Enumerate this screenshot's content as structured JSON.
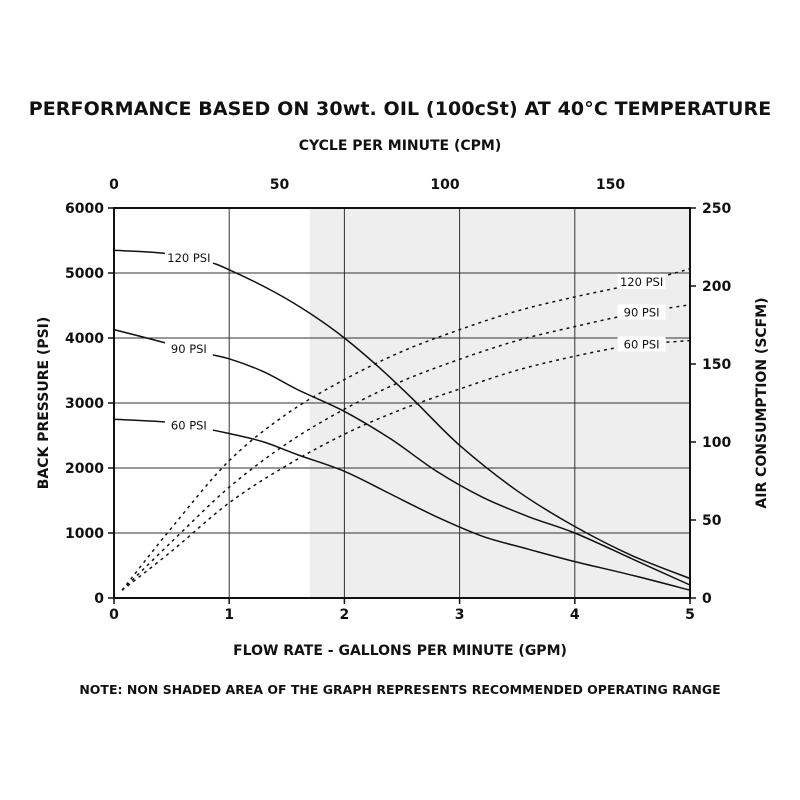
{
  "chart_data": {
    "type": "line",
    "title": "PERFORMANCE BASED ON 30wt. OIL (100cSt) AT 40°C TEMPERATURE",
    "top_axis_title": "CYCLE PER MINUTE (CPM)",
    "xlabel": "FLOW RATE - GALLONS PER MINUTE (GPM)",
    "ylabel_left": "BACK PRESSURE  (PSI)",
    "ylabel_right": "AIR CONSUMPTION  (SCFM)",
    "note": "NOTE:  NON SHADED AREA OF THE GRAPH REPRESENTS RECOMMENDED OPERATING RANGE",
    "xlim": [
      0,
      5
    ],
    "x_ticks": [
      "0",
      "1",
      "2",
      "3",
      "4",
      "5"
    ],
    "ylim_left": [
      0,
      6000
    ],
    "y_left_ticks": [
      "0",
      "1000",
      "2000",
      "3000",
      "4000",
      "5000",
      "6000"
    ],
    "ylim_right": [
      0,
      250
    ],
    "y_right_ticks": [
      "0",
      "50",
      "100",
      "150",
      "200",
      "250"
    ],
    "cpm_lim": [
      0,
      174
    ],
    "cpm_ticks": [
      "0",
      "50",
      "100",
      "150"
    ],
    "shaded_region_gpm": [
      1.7,
      5
    ],
    "grid": true,
    "series": [
      {
        "name": "120 PSI",
        "axis": "left",
        "style": "solid",
        "x": [
          0,
          0.45,
          0.8,
          1.0,
          1.4,
          1.7,
          2.0,
          2.3,
          2.6,
          3.0,
          3.5,
          4.0,
          4.5,
          5.0
        ],
        "y": [
          5350,
          5300,
          5180,
          5050,
          4700,
          4380,
          4000,
          3550,
          3050,
          2350,
          1650,
          1100,
          650,
          300
        ]
      },
      {
        "name": "90 PSI",
        "axis": "left",
        "style": "solid",
        "x": [
          0,
          0.5,
          0.75,
          1.0,
          1.3,
          1.6,
          2.0,
          2.4,
          2.8,
          3.2,
          3.6,
          4.0,
          4.5,
          5.0
        ],
        "y": [
          4130,
          3900,
          3780,
          3680,
          3480,
          3200,
          2870,
          2450,
          1950,
          1550,
          1250,
          1000,
          600,
          200
        ]
      },
      {
        "name": "60 PSI",
        "axis": "left",
        "style": "solid",
        "x": [
          0,
          0.5,
          0.75,
          1.0,
          1.3,
          1.6,
          2.0,
          2.4,
          2.8,
          3.2,
          3.6,
          4.0,
          4.5,
          5.0
        ],
        "y": [
          2750,
          2700,
          2620,
          2530,
          2400,
          2200,
          1950,
          1600,
          1250,
          950,
          750,
          560,
          350,
          120
        ]
      },
      {
        "name": "120 PSI",
        "axis": "right",
        "style": "dashed",
        "x": [
          0.07,
          0.5,
          1.0,
          1.5,
          2.0,
          2.5,
          3.0,
          3.5,
          4.0,
          4.5,
          5.0
        ],
        "y": [
          5,
          45,
          88,
          118,
          140,
          158,
          172,
          184,
          193,
          201,
          211
        ]
      },
      {
        "name": "90 PSI",
        "axis": "right",
        "style": "dashed",
        "x": [
          0.07,
          0.5,
          1.0,
          1.5,
          2.0,
          2.5,
          3.0,
          3.5,
          4.0,
          4.5,
          5.0
        ],
        "y": [
          5,
          36,
          71,
          99,
          121,
          139,
          153,
          165,
          174,
          182,
          188
        ]
      },
      {
        "name": "60 PSI",
        "axis": "right",
        "style": "dashed",
        "x": [
          0.07,
          0.5,
          1.0,
          1.5,
          2.0,
          2.5,
          3.0,
          3.5,
          4.0,
          4.5,
          5.0
        ],
        "y": [
          5,
          30,
          61,
          85,
          105,
          121,
          134,
          146,
          155,
          162,
          165
        ]
      }
    ]
  }
}
